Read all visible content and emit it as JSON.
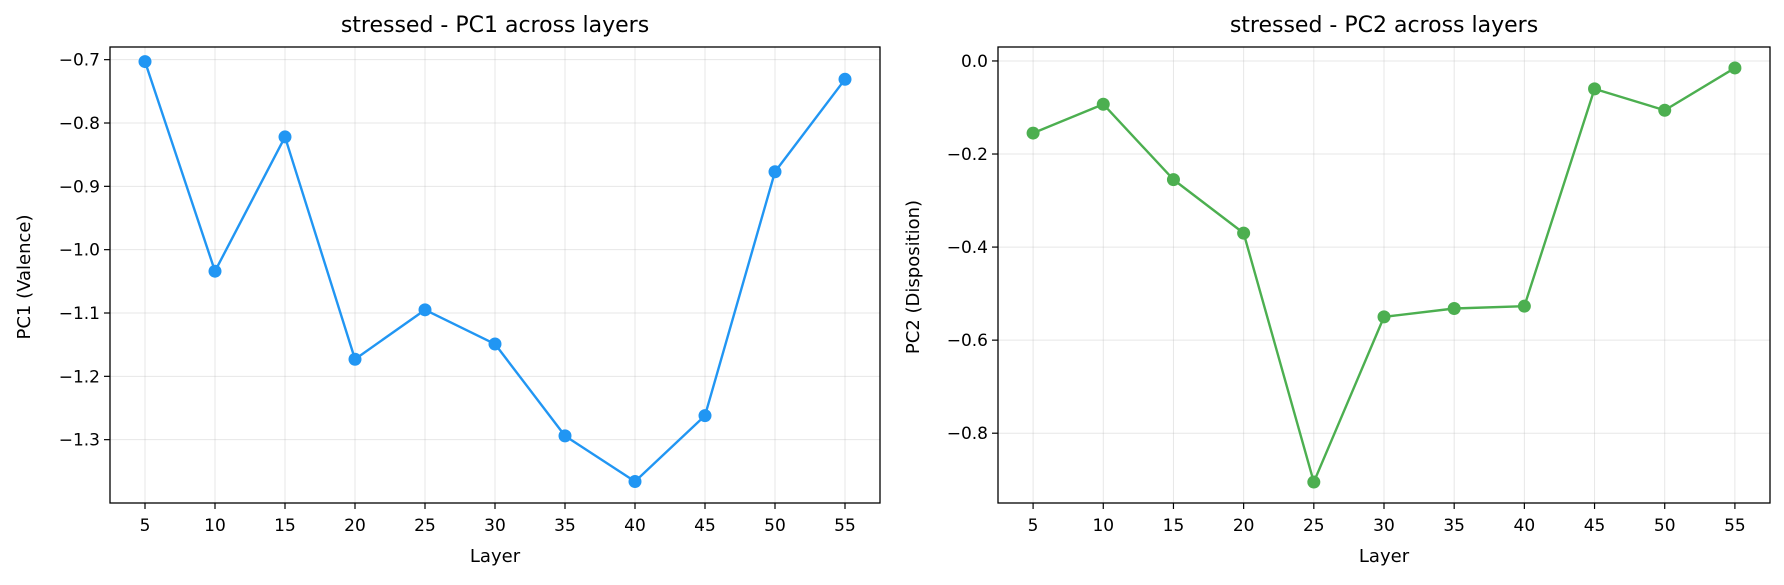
{
  "chart_data": [
    {
      "type": "line",
      "title": "stressed - PC1 across layers",
      "xlabel": "Layer",
      "ylabel": "PC1 (Valence)",
      "color": "#2196f3",
      "grid": true,
      "x": [
        5,
        10,
        15,
        20,
        25,
        30,
        35,
        40,
        45,
        50,
        55
      ],
      "series": [
        {
          "values": [
            -0.703,
            -1.034,
            -0.822,
            -1.173,
            -1.095,
            -1.149,
            -1.294,
            -1.366,
            -1.262,
            -0.877,
            -0.731
          ]
        }
      ],
      "xticks": [
        5,
        10,
        15,
        20,
        25,
        30,
        35,
        40,
        45,
        50,
        55
      ],
      "yticks": [
        -0.7,
        -0.8,
        -0.9,
        -1.0,
        -1.1,
        -1.2,
        -1.3
      ],
      "ytick_labels": [
        "−0.7",
        "−0.8",
        "−0.9",
        "−1.0",
        "−1.1",
        "−1.2",
        "−1.3"
      ],
      "xlim": [
        2.5,
        57.5
      ],
      "ylim": [
        -1.4,
        -0.68
      ]
    },
    {
      "type": "line",
      "title": "stressed - PC2 across layers",
      "xlabel": "Layer",
      "ylabel": "PC2 (Disposition)",
      "color": "#4caf50",
      "grid": true,
      "x": [
        5,
        10,
        15,
        20,
        25,
        30,
        35,
        40,
        45,
        50,
        55
      ],
      "series": [
        {
          "values": [
            -0.155,
            -0.093,
            -0.255,
            -0.37,
            -0.905,
            -0.55,
            -0.532,
            -0.527,
            -0.06,
            -0.106,
            -0.015
          ]
        }
      ],
      "xticks": [
        5,
        10,
        15,
        20,
        25,
        30,
        35,
        40,
        45,
        50,
        55
      ],
      "yticks": [
        0.0,
        -0.2,
        -0.4,
        -0.6,
        -0.8
      ],
      "ytick_labels": [
        "0.0",
        "−0.2",
        "−0.4",
        "−0.6",
        "−0.8"
      ],
      "xlim": [
        2.5,
        57.5
      ],
      "ylim": [
        -0.95,
        0.03
      ]
    }
  ]
}
